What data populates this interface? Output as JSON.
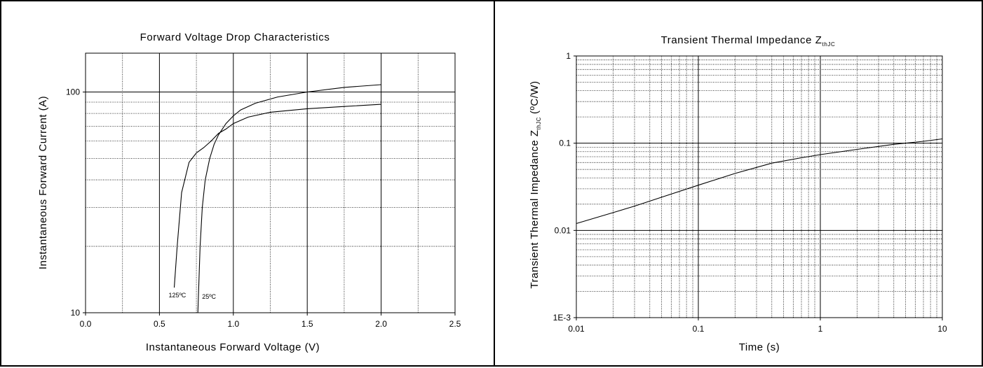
{
  "chart_data": [
    {
      "type": "line",
      "title": "Forward Voltage Drop Characteristics",
      "xlabel": "Instantaneous Forward Voltage (V)",
      "ylabel": "Instantaneous Forward Current (A)",
      "xlim": [
        0,
        2.5
      ],
      "ylim": [
        10,
        150
      ],
      "yscale": "log",
      "grid": true,
      "x_ticks": [
        "0.0",
        "0.5",
        "1.0",
        "1.5",
        "2.0",
        "2.5"
      ],
      "y_ticks": [
        "10",
        "100"
      ],
      "annotations": [
        "125ºC",
        "25ºC"
      ],
      "series": [
        {
          "name": "125ºC",
          "x": [
            0.6,
            0.62,
            0.65,
            0.7,
            0.75,
            0.8,
            0.85,
            0.9,
            0.95,
            1.0,
            1.1,
            1.25,
            1.5,
            1.75,
            2.0
          ],
          "y": [
            13,
            20,
            35,
            48,
            53,
            56,
            60,
            65,
            68,
            72,
            77,
            81,
            84,
            86,
            88
          ]
        },
        {
          "name": "25ºC",
          "x": [
            0.76,
            0.775,
            0.79,
            0.81,
            0.84,
            0.87,
            0.9,
            0.95,
            1.0,
            1.05,
            1.15,
            1.3,
            1.5,
            1.75,
            2.0
          ],
          "y": [
            10,
            20,
            30,
            40,
            50,
            58,
            64,
            72,
            78,
            83,
            89,
            95,
            100,
            105,
            108
          ]
        }
      ]
    },
    {
      "type": "line",
      "title": "Transient Thermal Impedance Z",
      "title_sub": "thJC",
      "xlabel": "Time (s)",
      "ylabel": "Transient Thermal Impedance Z",
      "ylabel_sub": "thJC",
      "ylabel_unit": "(ºC/W)",
      "xlim": [
        0.01,
        10
      ],
      "ylim": [
        0.001,
        1
      ],
      "xscale": "log",
      "yscale": "log",
      "grid": true,
      "x_ticks": [
        "0.01",
        "0.1",
        "1",
        "10"
      ],
      "y_ticks": [
        "1E-3",
        "0.01",
        "0.1",
        "1"
      ],
      "series": [
        {
          "x": [
            0.01,
            0.02,
            0.03,
            0.05,
            0.1,
            0.2,
            0.4,
            0.7,
            1,
            2,
            4,
            7,
            10
          ],
          "y": [
            0.012,
            0.016,
            0.019,
            0.024,
            0.033,
            0.045,
            0.059,
            0.068,
            0.074,
            0.085,
            0.097,
            0.105,
            0.112
          ]
        }
      ]
    }
  ]
}
